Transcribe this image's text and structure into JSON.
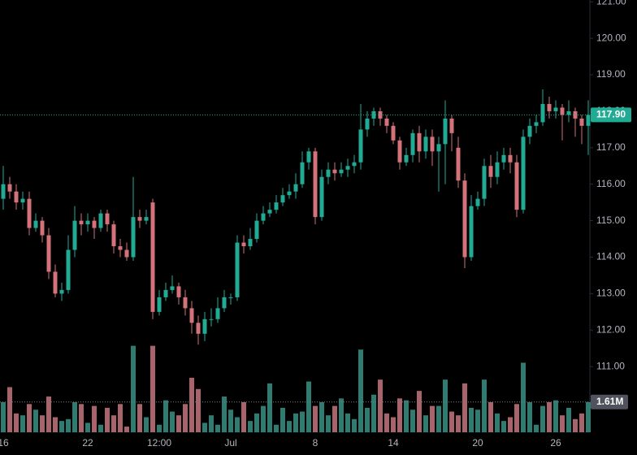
{
  "chart_data": {
    "type": "candlestick",
    "categories": [
      "16",
      null,
      null,
      null,
      null,
      null,
      null,
      null,
      null,
      null,
      null,
      null,
      null,
      "22",
      null,
      null,
      null,
      null,
      null,
      null,
      null,
      null,
      null,
      null,
      "12:00",
      null,
      null,
      null,
      null,
      null,
      null,
      null,
      null,
      null,
      null,
      "Jul",
      null,
      null,
      null,
      null,
      null,
      null,
      null,
      null,
      null,
      null,
      null,
      null,
      "8",
      null,
      null,
      null,
      null,
      null,
      null,
      null,
      null,
      null,
      null,
      null,
      "14",
      null,
      null,
      null,
      null,
      null,
      null,
      null,
      null,
      null,
      null,
      null,
      null,
      "20",
      null,
      null,
      null,
      null,
      null,
      null,
      null,
      null,
      null,
      null,
      null,
      "26",
      null,
      null,
      null,
      null,
      null
    ],
    "open": [
      115.6,
      116.0,
      115.8,
      115.5,
      115.6,
      114.8,
      115.0,
      114.6,
      113.6,
      113.0,
      113.1,
      114.2,
      115.0,
      114.9,
      115.0,
      114.8,
      115.2,
      114.9,
      114.3,
      114.2,
      114.0,
      115.1,
      115.0,
      115.5,
      112.5,
      112.9,
      113.1,
      113.2,
      112.9,
      112.6,
      112.2,
      111.9,
      112.3,
      112.3,
      112.6,
      112.9,
      112.9,
      114.4,
      114.3,
      114.5,
      115.0,
      115.2,
      115.3,
      115.5,
      115.7,
      115.8,
      116.0,
      116.6,
      116.9,
      115.1,
      116.2,
      116.4,
      116.3,
      116.4,
      116.5,
      116.6,
      117.5,
      117.8,
      118.0,
      117.8,
      117.6,
      117.2,
      116.6,
      116.8,
      117.4,
      116.9,
      117.3,
      116.9,
      117.1,
      117.8,
      117.0,
      116.1,
      114.0,
      115.4,
      115.6,
      116.5,
      116.2,
      116.6,
      116.8,
      116.6,
      115.3,
      117.3,
      117.6,
      117.7,
      118.2,
      118.0,
      118.1,
      117.9,
      118.0,
      117.8,
      117.6
    ],
    "high": [
      116.5,
      116.2,
      116.0,
      115.8,
      115.8,
      115.2,
      115.1,
      114.8,
      113.8,
      113.3,
      114.6,
      115.4,
      115.2,
      115.2,
      115.1,
      115.3,
      115.3,
      115.0,
      114.5,
      114.4,
      116.2,
      115.3,
      115.3,
      115.6,
      113.1,
      113.3,
      113.5,
      113.3,
      113.1,
      112.8,
      112.4,
      112.5,
      112.6,
      112.9,
      113.1,
      113.0,
      114.6,
      114.6,
      114.8,
      115.2,
      115.4,
      115.5,
      115.7,
      115.9,
      116.0,
      116.3,
      116.9,
      117.0,
      117.0,
      116.4,
      116.6,
      116.6,
      116.6,
      116.7,
      116.8,
      118.2,
      118.0,
      118.1,
      118.1,
      117.9,
      117.7,
      117.3,
      117.0,
      117.5,
      117.6,
      117.5,
      117.5,
      117.3,
      118.3,
      117.9,
      117.3,
      116.3,
      115.7,
      115.8,
      116.7,
      116.8,
      116.9,
      117.0,
      117.0,
      116.8,
      117.5,
      117.8,
      117.9,
      118.6,
      118.4,
      118.3,
      118.2,
      118.3,
      118.1,
      117.9,
      118.3
    ],
    "low": [
      115.3,
      115.6,
      115.3,
      115.3,
      114.6,
      114.7,
      114.4,
      113.4,
      112.9,
      112.8,
      113.0,
      114.0,
      114.6,
      114.7,
      114.5,
      114.7,
      114.7,
      114.1,
      114.0,
      113.9,
      113.9,
      114.8,
      114.9,
      112.3,
      112.4,
      112.8,
      113.0,
      112.7,
      112.4,
      111.9,
      111.6,
      111.7,
      112.1,
      112.2,
      112.5,
      112.7,
      112.8,
      114.1,
      114.2,
      114.4,
      114.9,
      115.1,
      115.2,
      115.4,
      115.6,
      115.6,
      115.9,
      116.4,
      114.9,
      115.0,
      116.0,
      116.1,
      116.2,
      116.2,
      116.3,
      116.4,
      117.3,
      117.6,
      117.6,
      117.4,
      117.1,
      116.4,
      116.5,
      116.6,
      116.6,
      116.7,
      116.5,
      115.8,
      116.0,
      116.9,
      115.9,
      113.7,
      113.9,
      115.3,
      115.4,
      115.9,
      116.0,
      116.4,
      116.3,
      115.1,
      115.2,
      117.1,
      117.4,
      117.6,
      117.8,
      117.8,
      117.2,
      117.7,
      117.3,
      117.1,
      116.8
    ],
    "close": [
      116.0,
      115.8,
      115.5,
      115.6,
      114.8,
      115.0,
      114.6,
      113.6,
      113.0,
      113.1,
      114.2,
      115.0,
      114.9,
      115.0,
      114.8,
      115.2,
      114.9,
      114.3,
      114.2,
      114.0,
      115.1,
      115.0,
      115.1,
      112.5,
      112.9,
      113.1,
      113.2,
      112.9,
      112.6,
      112.2,
      111.9,
      112.3,
      112.3,
      112.6,
      112.9,
      112.9,
      114.4,
      114.3,
      114.5,
      115.0,
      115.2,
      115.3,
      115.5,
      115.7,
      115.8,
      116.0,
      116.6,
      116.9,
      115.1,
      116.2,
      116.4,
      116.3,
      116.4,
      116.5,
      116.6,
      117.5,
      117.8,
      118.0,
      117.8,
      117.6,
      117.2,
      116.6,
      116.8,
      117.4,
      116.9,
      117.3,
      116.9,
      117.1,
      117.8,
      117.4,
      116.1,
      114.0,
      115.4,
      115.6,
      116.5,
      116.2,
      116.6,
      116.8,
      116.6,
      115.3,
      117.3,
      117.6,
      117.7,
      118.2,
      118.0,
      118.1,
      117.9,
      118.0,
      117.8,
      117.6,
      117.9
    ],
    "volume": [
      1.6,
      2.4,
      1.0,
      0.9,
      1.5,
      1.2,
      0.9,
      1.9,
      0.8,
      0.6,
      0.7,
      1.6,
      1.5,
      0.5,
      1.4,
      0.4,
      1.3,
      0.9,
      1.5,
      0.3,
      4.6,
      1.5,
      0.8,
      4.6,
      0.4,
      1.7,
      1.1,
      0.9,
      1.5,
      2.9,
      2.3,
      0.5,
      0.9,
      0.4,
      1.9,
      1.2,
      0.8,
      1.6,
      0.6,
      1.0,
      1.4,
      2.6,
      0.4,
      1.3,
      0.6,
      1.0,
      1.1,
      2.7,
      1.4,
      1.6,
      0.9,
      1.4,
      1.8,
      1.0,
      0.7,
      4.4,
      1.3,
      2.0,
      2.8,
      1.0,
      0.8,
      1.8,
      1.7,
      1.2,
      2.2,
      0.9,
      1.4,
      1.4,
      2.8,
      1.1,
      0.9,
      2.6,
      1.3,
      1.2,
      2.8,
      1.6,
      1.0,
      0.6,
      0.8,
      1.5,
      3.7,
      1.6,
      0.4,
      1.4,
      1.6,
      1.7,
      0.9,
      1.3,
      0.7,
      1.0,
      1.61
    ],
    "ylim": [
      109.2,
      121.05
    ],
    "yticks": [
      {
        "value": 111,
        "label": "111.00"
      },
      {
        "value": 112,
        "label": "112.00"
      },
      {
        "value": 113,
        "label": "113.00"
      },
      {
        "value": 114,
        "label": "114.00"
      },
      {
        "value": 115,
        "label": "115.00"
      },
      {
        "value": 116,
        "label": "116.00"
      },
      {
        "value": 117,
        "label": "117.00"
      },
      {
        "value": 118,
        "label": "118.00"
      },
      {
        "value": 119,
        "label": "119.00"
      },
      {
        "value": 120,
        "label": "120.00"
      },
      {
        "value": 121,
        "label": "121.00"
      }
    ],
    "volume_ylim": [
      0,
      23
    ],
    "last_price": {
      "value": 117.9,
      "label": "117.90"
    },
    "last_volume": {
      "value": 1.61,
      "label": "1.61M"
    },
    "up_color": "#22ab94",
    "down_color": "#d4727a",
    "volume_up_color": "#2f7d72",
    "volume_down_color": "#a8646a",
    "price_label_color": "#22ab94",
    "volume_label_color": "#50535e"
  }
}
